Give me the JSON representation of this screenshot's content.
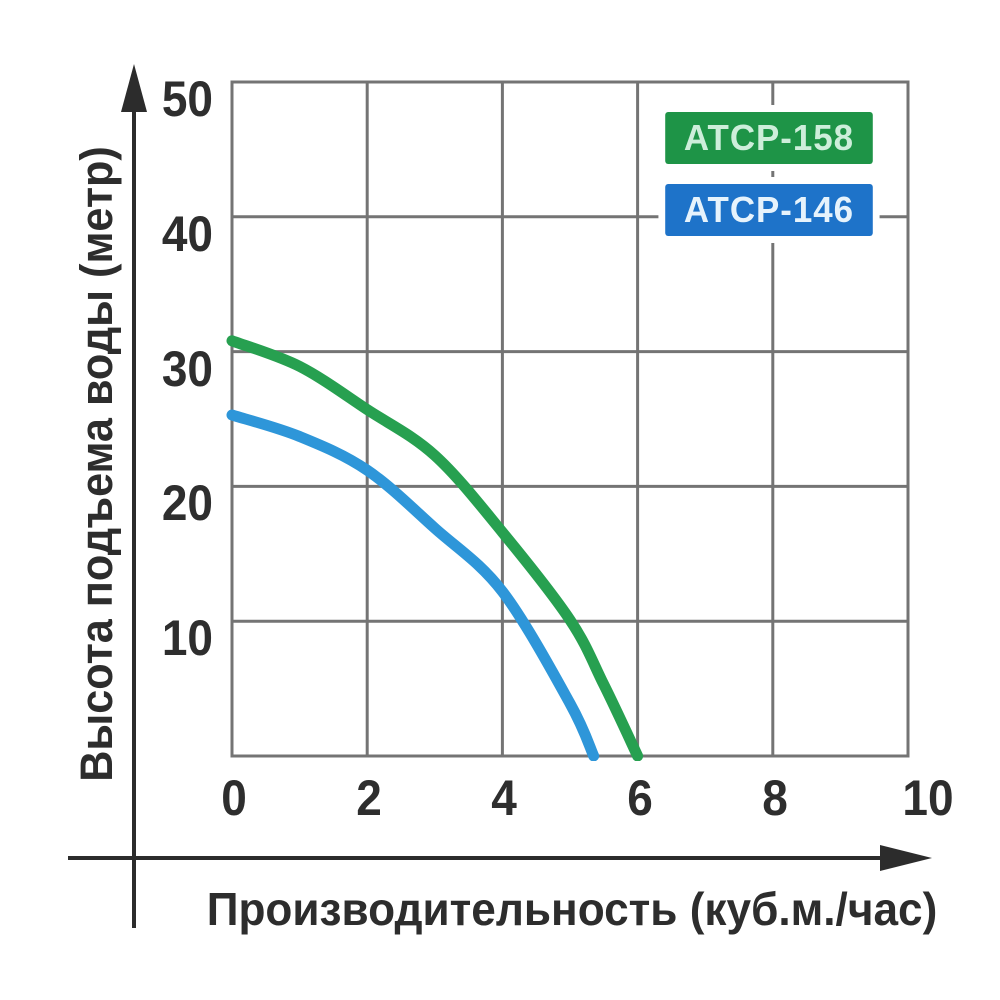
{
  "chart_data": {
    "type": "line",
    "xlabel": "Производительность (куб.м./час)",
    "ylabel": "Высота подъема воды (метр)",
    "xlim": [
      0,
      10
    ],
    "ylim": [
      0,
      50
    ],
    "x_ticks": [
      0,
      2,
      4,
      6,
      8,
      10
    ],
    "y_ticks": [
      50,
      40,
      30,
      20,
      10
    ],
    "grid": true,
    "legend_position": "top-right-inside",
    "series": [
      {
        "name": "ATCP-158",
        "color": "#27a050",
        "points": [
          [
            0,
            30.8
          ],
          [
            1,
            28.9
          ],
          [
            2,
            25.7
          ],
          [
            3,
            22.3
          ],
          [
            4,
            16.6
          ],
          [
            5,
            10.1
          ],
          [
            5.5,
            5.3
          ],
          [
            6,
            0
          ]
        ]
      },
      {
        "name": "ATCP-146",
        "color": "#2e96d9",
        "points": [
          [
            0,
            25.3
          ],
          [
            1,
            23.7
          ],
          [
            2,
            21.2
          ],
          [
            3,
            16.9
          ],
          [
            4,
            12.2
          ],
          [
            5,
            3.9
          ],
          [
            5.35,
            0
          ]
        ]
      }
    ]
  },
  "legend": {
    "items": [
      {
        "label": "ATCP-158",
        "bg": "#1e9447",
        "text": "#cdeeda"
      },
      {
        "label": "ATCP-146",
        "bg": "#1e73c9",
        "text": "#e6f3fc"
      }
    ]
  },
  "colors": {
    "grid": "#747474",
    "axis_arrow": "#2c2c2c",
    "tick_text": "#2e2e2e",
    "background": "#ffffff"
  }
}
